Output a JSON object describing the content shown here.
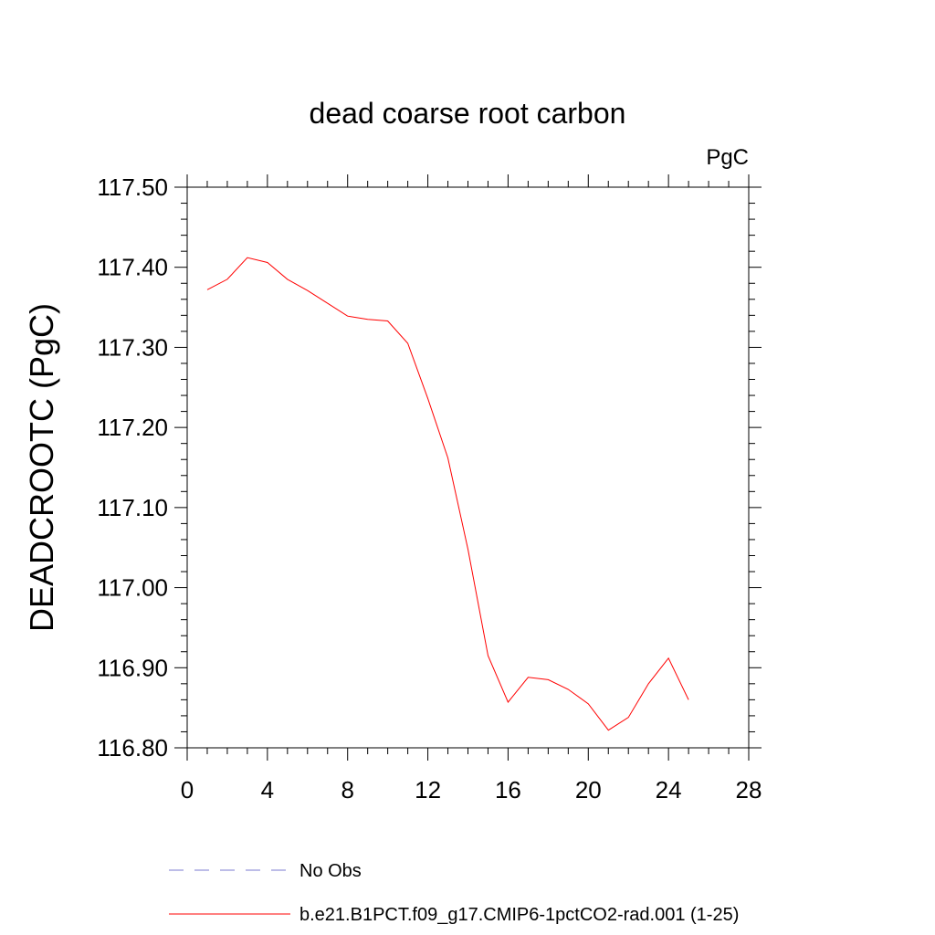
{
  "chart_data": {
    "type": "line",
    "title": "dead coarse root carbon",
    "units_label": "PgC",
    "ylabel": "DEADCROOTC  (PgC)",
    "xlabel": "",
    "xlim": [
      0,
      28
    ],
    "ylim": [
      116.8,
      117.5
    ],
    "x_ticks": [
      0,
      4,
      8,
      12,
      16,
      20,
      24,
      28
    ],
    "y_ticks": [
      "116.80",
      "116.90",
      "117.00",
      "117.10",
      "117.20",
      "117.30",
      "117.40",
      "117.50"
    ],
    "grid": false,
    "legend_position": "bottom",
    "series": [
      {
        "name": "No Obs",
        "color": "#7b7bd0",
        "style": "dashed",
        "x": [],
        "y": []
      },
      {
        "name": "b.e21.B1PCT.f09_g17.CMIP6-1pctCO2-rad.001 (1-25)",
        "color": "#ff0000",
        "style": "solid",
        "x": [
          1,
          2,
          3,
          4,
          5,
          6,
          7,
          8,
          9,
          10,
          11,
          12,
          13,
          14,
          15,
          16,
          17,
          18,
          19,
          20,
          21,
          22,
          23,
          24,
          25
        ],
        "y": [
          117.372,
          117.385,
          117.412,
          117.406,
          117.385,
          117.371,
          117.355,
          117.339,
          117.335,
          117.333,
          117.305,
          117.236,
          117.162,
          117.048,
          116.915,
          116.857,
          116.888,
          116.885,
          116.873,
          116.855,
          116.822,
          116.838,
          116.88,
          116.912,
          116.86
        ]
      }
    ]
  }
}
